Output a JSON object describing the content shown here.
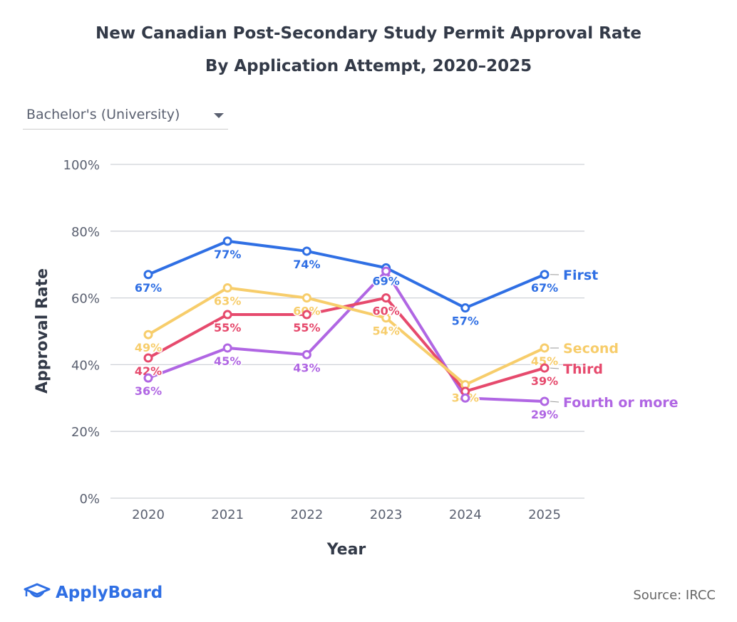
{
  "chart_data": {
    "type": "line",
    "title": "New Canadian Post-Secondary Study Permit Approval Rate",
    "subtitle": "By Application Attempt, 2020–2025",
    "xlabel": "Year",
    "ylabel": "Approval Rate",
    "x": [
      "2020",
      "2021",
      "2022",
      "2023",
      "2024",
      "2025"
    ],
    "ylim": [
      0,
      100
    ],
    "yticks": [
      0,
      20,
      40,
      60,
      80,
      100
    ],
    "ytick_labels": [
      "0%",
      "20%",
      "40%",
      "60%",
      "80%",
      "100%"
    ],
    "grid": true,
    "legend": "end-of-line labels (right)",
    "series": [
      {
        "name": "First",
        "color": "#2f6fe4",
        "values": [
          67,
          77,
          74,
          69,
          57,
          67
        ],
        "labels": [
          "67%",
          "77%",
          "74%",
          "69%",
          "57%",
          "67%"
        ]
      },
      {
        "name": "Second",
        "color": "#f7cd6b",
        "values": [
          49,
          63,
          60,
          54,
          34,
          45
        ],
        "labels": [
          "49%",
          "63%",
          "60%",
          "54%",
          "34%",
          "45%"
        ]
      },
      {
        "name": "Third",
        "color": "#e64a6d",
        "values": [
          42,
          55,
          55,
          60,
          32,
          39
        ],
        "labels": [
          "42%",
          "55%",
          "55%",
          "60%",
          null,
          "39%"
        ]
      },
      {
        "name": "Fourth or more",
        "color": "#b066e3",
        "values": [
          36,
          45,
          43,
          68,
          30,
          29
        ],
        "labels": [
          "36%",
          "45%",
          "43%",
          null,
          null,
          "29%"
        ]
      }
    ]
  },
  "filter": {
    "selected": "Bachelor's (University)"
  },
  "logo": "ApplyBoard",
  "source": "Source: IRCC"
}
